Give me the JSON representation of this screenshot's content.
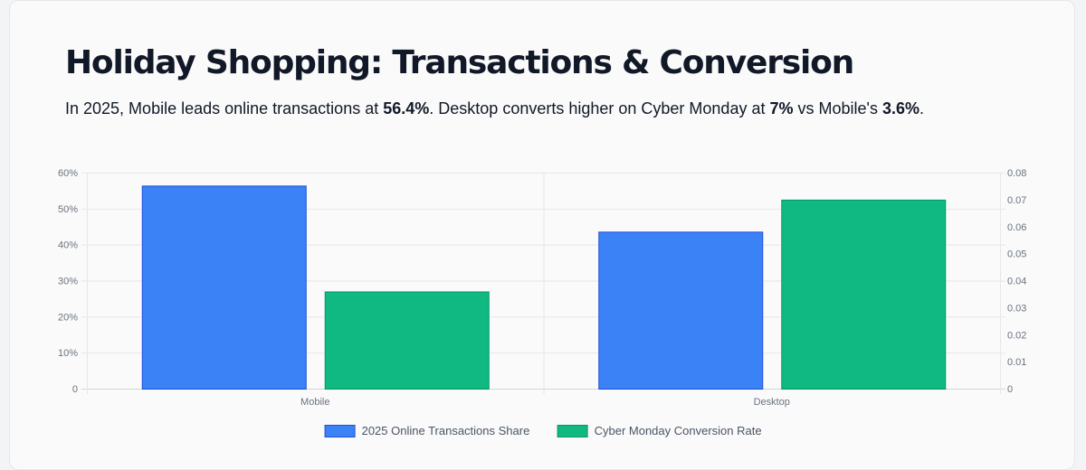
{
  "header": {
    "title": "Holiday Shopping: Transactions & Conversion",
    "subtitle_parts": [
      "In 2025, Mobile leads online transactions at ",
      "56.4%",
      ". Desktop converts higher on Cyber Monday at ",
      "7%",
      " vs Mobile's ",
      "3.6%",
      "."
    ]
  },
  "chart_data": {
    "type": "bar",
    "categories": [
      "Mobile",
      "Desktop"
    ],
    "series": [
      {
        "name": "2025 Online Transactions Share",
        "axis": "left",
        "values": [
          56.4,
          43.6
        ],
        "color": "#3b82f6",
        "border": "#1d4ed8"
      },
      {
        "name": "Cyber Monday Conversion Rate",
        "axis": "right",
        "values": [
          0.036,
          0.07
        ],
        "color": "#10b981",
        "border": "#059669"
      }
    ],
    "left_axis": {
      "ylim": [
        0,
        60
      ],
      "ticks": [
        0,
        10,
        20,
        30,
        40,
        50,
        60
      ],
      "tick_labels": [
        "0",
        "10%",
        "20%",
        "30%",
        "40%",
        "50%",
        "60%"
      ]
    },
    "right_axis": {
      "ylim": [
        0,
        0.08
      ],
      "ticks": [
        0,
        0.01,
        0.02,
        0.03,
        0.04,
        0.05,
        0.06,
        0.07,
        0.08
      ],
      "tick_labels": [
        "0",
        "0.01",
        "0.02",
        "0.03",
        "0.04",
        "0.05",
        "0.06",
        "0.07",
        "0.08"
      ]
    },
    "grid": true,
    "legend_position": "bottom"
  }
}
